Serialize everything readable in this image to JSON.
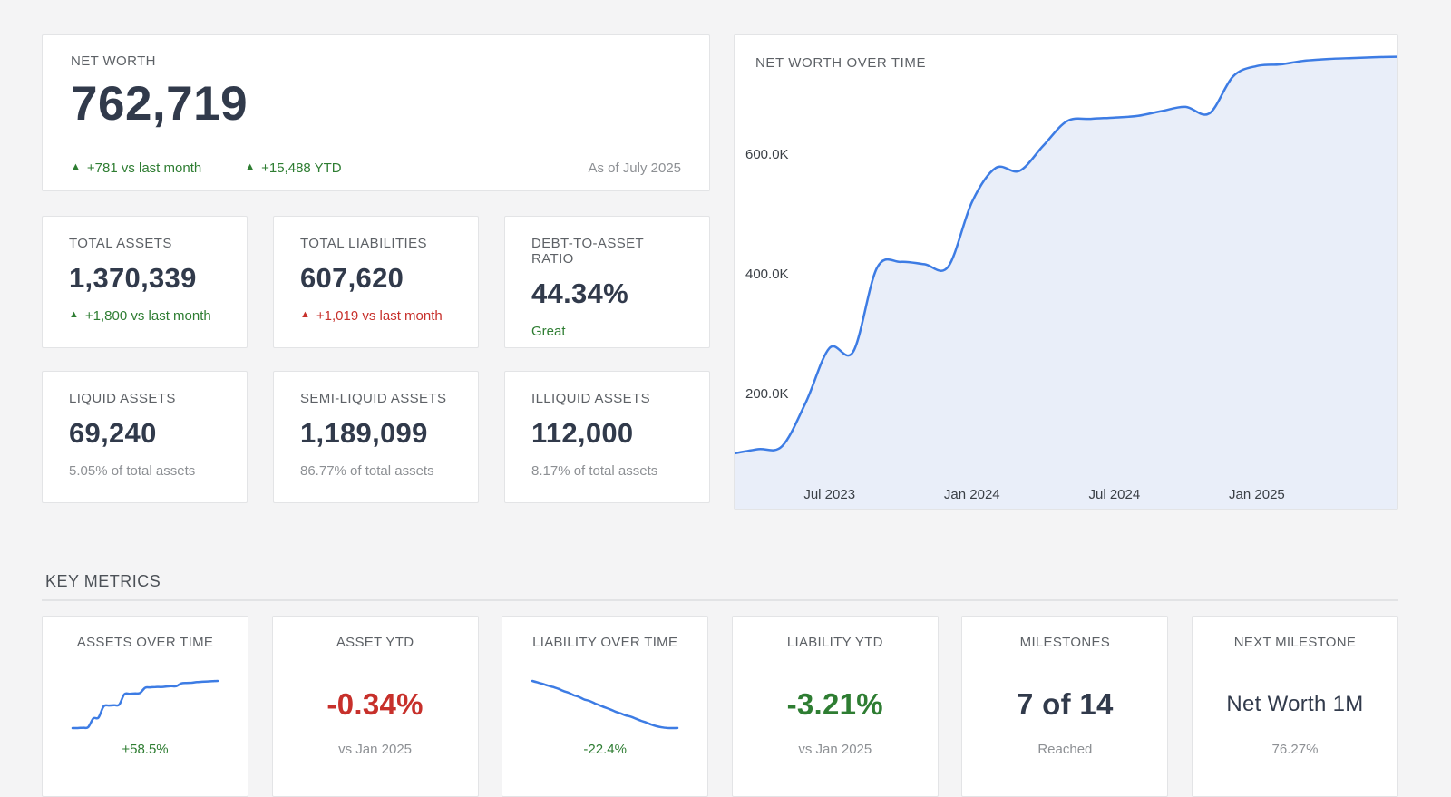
{
  "colors": {
    "background": "#f4f4f5",
    "card_border": "#e3e4e6",
    "accent_blue": "#3d7ce4",
    "chart_fill": "#e9eef9",
    "positive_green": "#2e7d32",
    "negative_red": "#c7302b",
    "dark_navy": "#313a4b",
    "muted_gray": "#8d9094"
  },
  "net_worth_card": {
    "title": "NET WORTH",
    "value": "762,719",
    "delta_month": "+781 vs last month",
    "delta_ytd": "+15,488 YTD",
    "as_of": "As of July 2025",
    "up_triangle": "▲"
  },
  "summary_cards": [
    {
      "title": "TOTAL ASSETS",
      "value": "1,370,339",
      "delta": "+1,800 vs last month",
      "delta_direction": "up",
      "delta_color": "green",
      "triangle": "▲"
    },
    {
      "title": "TOTAL LIABILITIES",
      "value": "607,620",
      "delta": "+1,019 vs last month",
      "delta_direction": "up",
      "delta_color": "red",
      "triangle": "▲"
    },
    {
      "title": "DEBT-TO-ASSET RATIO",
      "value": "44.34%",
      "delta": "Great",
      "delta_color": "green"
    }
  ],
  "allocation_cards": [
    {
      "title": "LIQUID ASSETS",
      "value": "69,240",
      "note": "5.05% of total assets"
    },
    {
      "title": "SEMI-LIQUID ASSETS",
      "value": "1,189,099",
      "note": "86.77% of total assets"
    },
    {
      "title": "ILLIQUID ASSETS",
      "value": "112,000",
      "note": "8.17% of total assets"
    }
  ],
  "key_metrics": {
    "heading": "KEY METRICS",
    "cards": [
      {
        "title": "ASSETS OVER TIME",
        "type": "sparkline",
        "chart_id": "assets-spark",
        "footer": "+58.5%",
        "footer_color": "green"
      },
      {
        "title": "ASSET YTD",
        "type": "value",
        "value": "-0.34%",
        "value_color": "red",
        "footer": "vs Jan 2025",
        "footer_color": "gray"
      },
      {
        "title": "LIABILITY OVER TIME",
        "type": "sparkline",
        "chart_id": "liability-spark",
        "footer": "-22.4%",
        "footer_color": "green"
      },
      {
        "title": "LIABILITY YTD",
        "type": "value",
        "value": "-3.21%",
        "value_color": "green",
        "footer": "vs Jan 2025",
        "footer_color": "gray"
      },
      {
        "title": "MILESTONES",
        "type": "value",
        "value": "7 of 14",
        "value_color": "navy",
        "footer": "Reached",
        "footer_color": "gray"
      },
      {
        "title": "NEXT MILESTONE",
        "type": "value",
        "value": "Net Worth 1M",
        "value_color": "navy",
        "footer": "76.27%",
        "footer_color": "gray"
      }
    ]
  },
  "chart_data": [
    {
      "id": "net-worth-over-time",
      "type": "area",
      "title": "NET WORTH OVER TIME",
      "grid": false,
      "legend": "none",
      "line_color": "#3d7ce4",
      "fill_color": "#e9eef9",
      "x": [
        "Mar 2023",
        "Apr 2023",
        "May 2023",
        "Jun 2023",
        "Jul 2023",
        "Aug 2023",
        "Sep 2023",
        "Oct 2023",
        "Nov 2023",
        "Dec 2023",
        "Jan 2024",
        "Feb 2024",
        "Mar 2024",
        "Apr 2024",
        "May 2024",
        "Jun 2024",
        "Jul 2024",
        "Aug 2024",
        "Sep 2024",
        "Oct 2024",
        "Nov 2024",
        "Dec 2024",
        "Jan 2025",
        "Feb 2025",
        "Mar 2025",
        "Apr 2025",
        "May 2025",
        "Jun 2025",
        "Jul 2025"
      ],
      "values": [
        100000,
        107000,
        112000,
        185000,
        276000,
        270000,
        410000,
        420000,
        416000,
        412000,
        520000,
        577000,
        572000,
        614000,
        655000,
        659000,
        661000,
        664000,
        672000,
        679000,
        668000,
        730000,
        747231,
        750000,
        756000,
        759000,
        760500,
        761938,
        762719
      ],
      "ylim": [
        100000,
        790000
      ],
      "y_ticks": [
        {
          "label": "200.0K",
          "value": 200000
        },
        {
          "label": "400.0K",
          "value": 400000
        },
        {
          "label": "600.0K",
          "value": 600000
        }
      ],
      "x_ticks": [
        {
          "label": "Jul 2023",
          "index": 4
        },
        {
          "label": "Jan 2024",
          "index": 10
        },
        {
          "label": "Jul 2024",
          "index": 16
        },
        {
          "label": "Jan 2025",
          "index": 22
        }
      ]
    },
    {
      "id": "assets-spark",
      "type": "line",
      "title": "ASSETS OVER TIME",
      "line_color": "#3d7ce4",
      "change_label": "+58.5%",
      "values": [
        100,
        100,
        100.5,
        101,
        112,
        113,
        127,
        128,
        128.5,
        129,
        142,
        142.5,
        143,
        143.5,
        150,
        150.5,
        151,
        151,
        151.5,
        152,
        152,
        155.5,
        156,
        156.3,
        157,
        157.5,
        157.8,
        158.2,
        158.5
      ]
    },
    {
      "id": "liability-spark",
      "type": "line",
      "title": "LIABILITY OVER TIME",
      "line_color": "#3d7ce4",
      "change_label": "-22.4%",
      "values": [
        100,
        99.3,
        98.6,
        97.8,
        97.1,
        96.3,
        95.2,
        94.4,
        93.2,
        92.4,
        91.2,
        90.5,
        89.4,
        88.4,
        87.4,
        86.5,
        85.4,
        84.6,
        83.6,
        83,
        82,
        81,
        80.2,
        79.2,
        78.4,
        77.9,
        77.6,
        77.55,
        77.6
      ]
    }
  ]
}
